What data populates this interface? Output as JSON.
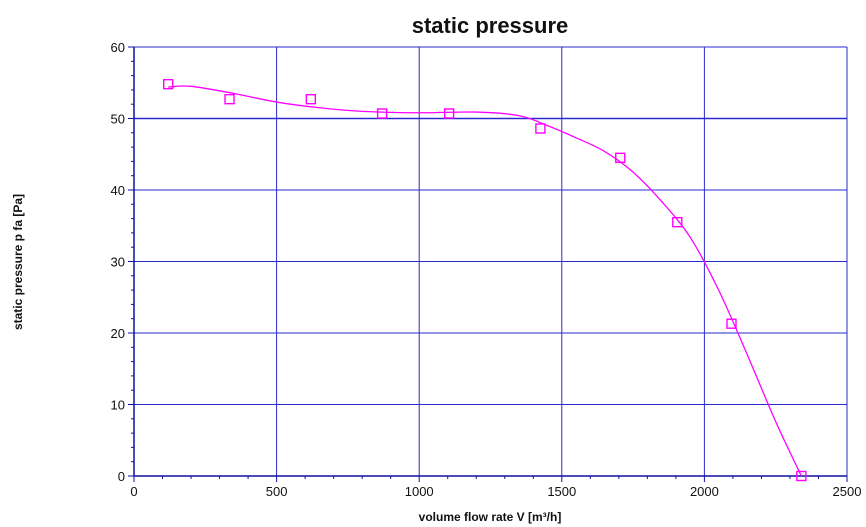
{
  "chart_data": {
    "type": "scatter",
    "title": "static pressure",
    "xlabel": "volume flow rate  V [m³/h]",
    "ylabel": "static pressure      p fa [Pa]",
    "xlim": [
      0,
      2500
    ],
    "ylim": [
      0,
      60
    ],
    "x_ticks": [
      0,
      500,
      1000,
      1500,
      2000,
      2500
    ],
    "y_ticks": [
      0,
      10,
      20,
      30,
      40,
      50,
      60
    ],
    "grid": true,
    "series": [
      {
        "kind": "markers",
        "color": "#ff00ff",
        "marker": "square",
        "points": [
          [
            120,
            54.8
          ],
          [
            335,
            52.7
          ],
          [
            620,
            52.7
          ],
          [
            870,
            50.7
          ],
          [
            1105,
            50.7
          ],
          [
            1425,
            48.6
          ],
          [
            1705,
            44.5
          ],
          [
            1905,
            35.5
          ],
          [
            2095,
            21.3
          ],
          [
            2340,
            0
          ]
        ]
      },
      {
        "kind": "curve",
        "color": "#ff00ff",
        "points": [
          [
            120,
            54.4
          ],
          [
            200,
            54.5
          ],
          [
            350,
            53.5
          ],
          [
            500,
            52.3
          ],
          [
            650,
            51.5
          ],
          [
            800,
            51.0
          ],
          [
            1000,
            50.8
          ],
          [
            1200,
            50.9
          ],
          [
            1350,
            50.4
          ],
          [
            1450,
            49.0
          ],
          [
            1550,
            47.3
          ],
          [
            1650,
            45.4
          ],
          [
            1750,
            42.5
          ],
          [
            1850,
            38.4
          ],
          [
            1950,
            33.4
          ],
          [
            2050,
            26.0
          ],
          [
            2150,
            17.0
          ],
          [
            2250,
            7.6
          ],
          [
            2340,
            0
          ]
        ]
      }
    ],
    "colors": {
      "axis": "#1010a0",
      "grid": "#2a2ad0",
      "frame": "#2a2ad0",
      "series": "#ff00ff"
    }
  }
}
